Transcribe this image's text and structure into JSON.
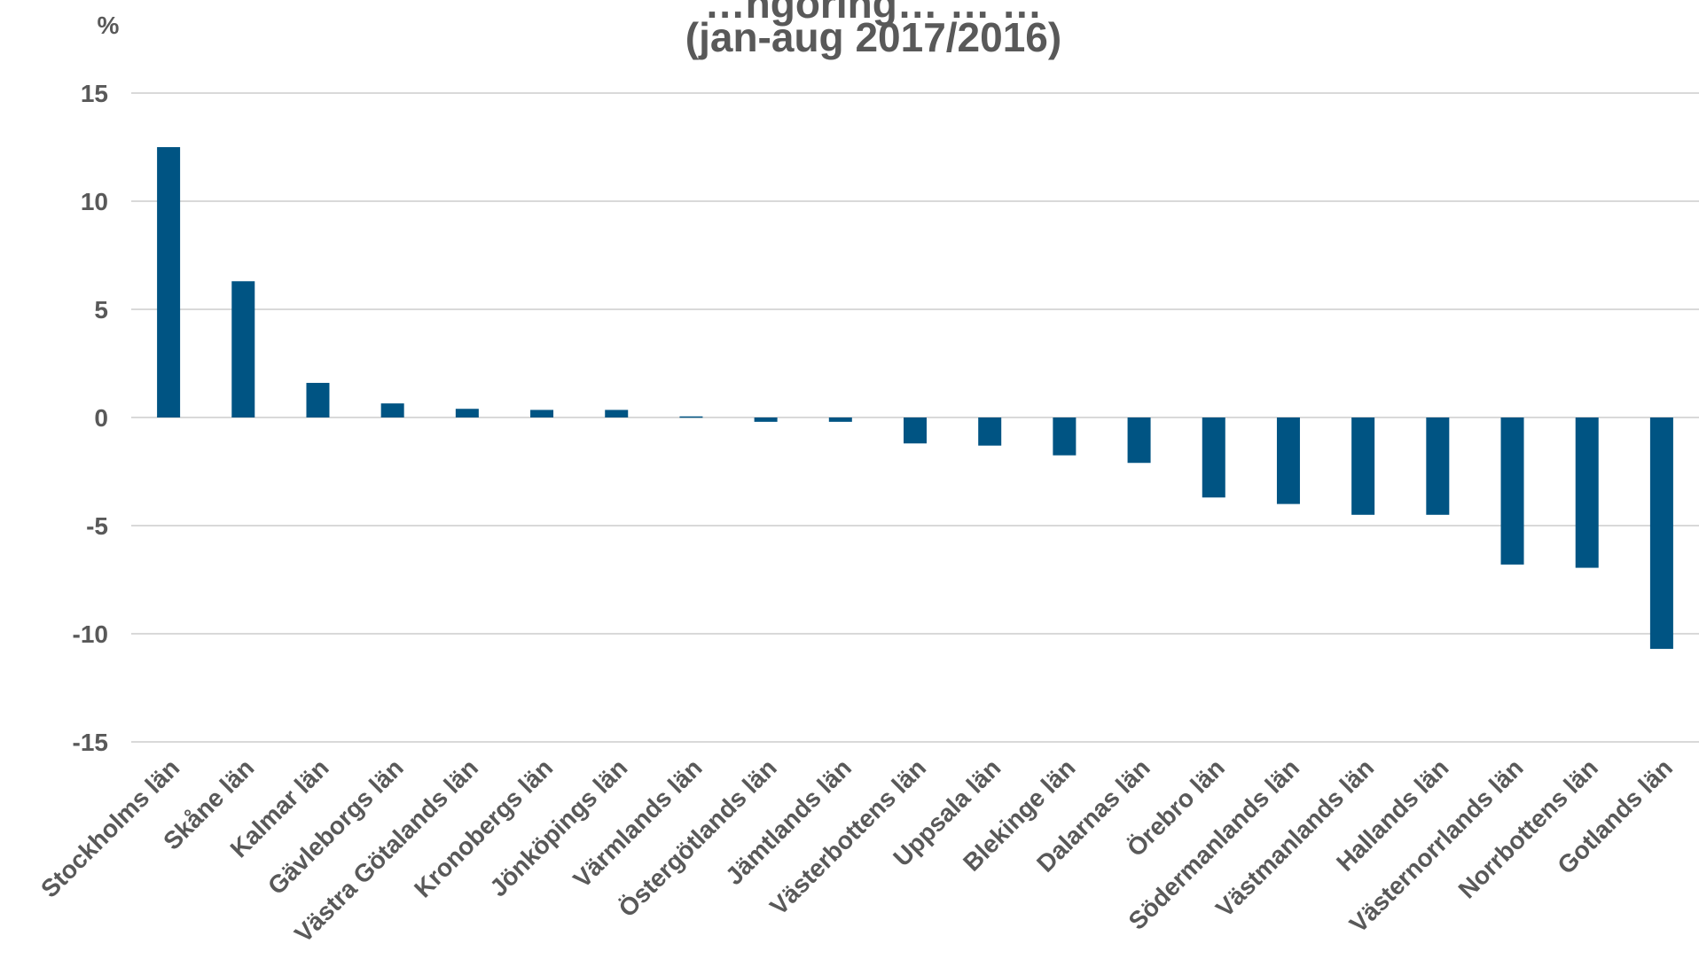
{
  "chart_data": {
    "type": "bar",
    "title_line1": "…ngöring… … …",
    "title_line2": "(jan-aug 2017/2016)",
    "unit_label": "%",
    "ylim": [
      -15,
      15
    ],
    "yticks": [
      15,
      10,
      5,
      0,
      -5,
      -10,
      -15
    ],
    "ytick_labels": [
      "15",
      "10",
      "5",
      "0",
      "-5",
      "-10",
      "-15"
    ],
    "grid": true,
    "bar_color": "#005483",
    "categories": [
      "Stockholms län",
      "Skåne län",
      "Kalmar län",
      "Gävleborgs län",
      "Västra Götalands län",
      "Kronobergs län",
      "Jönköpings län",
      "Värmlands län",
      "Östergötlands län",
      "Jämtlands län",
      "Västerbottens län",
      "Uppsala län",
      "Blekinge län",
      "Dalarnas län",
      "Örebro län",
      "Södermanlands län",
      "Västmanlands län",
      "Hallands län",
      "Västernorrlands län",
      "Norrbottens län",
      "Gotlands län"
    ],
    "values": [
      12.5,
      6.3,
      1.6,
      0.65,
      0.4,
      0.35,
      0.35,
      0.05,
      -0.2,
      -0.2,
      -1.2,
      -1.3,
      -1.75,
      -2.1,
      -3.7,
      -4.0,
      -4.5,
      -4.5,
      -6.8,
      -6.95,
      -10.7
    ]
  }
}
